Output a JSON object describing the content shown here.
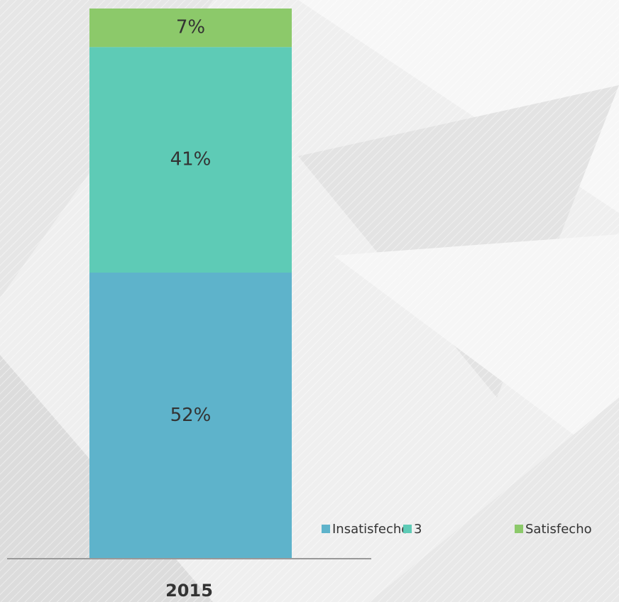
{
  "chart_data": {
    "type": "stacked-bar",
    "categories": [
      "2015"
    ],
    "series": [
      {
        "name": "Insatisfecho",
        "color": "#5eb3cb",
        "values": [
          52
        ],
        "value_labels": [
          "52%"
        ]
      },
      {
        "name": "3",
        "color": "#5ecbb6",
        "values": [
          41
        ],
        "value_labels": [
          "41%"
        ]
      },
      {
        "name": "Satisfecho",
        "color": "#8cc96a",
        "values": [
          7
        ],
        "value_labels": [
          "7%"
        ]
      }
    ],
    "legend": "bottom-right"
  }
}
